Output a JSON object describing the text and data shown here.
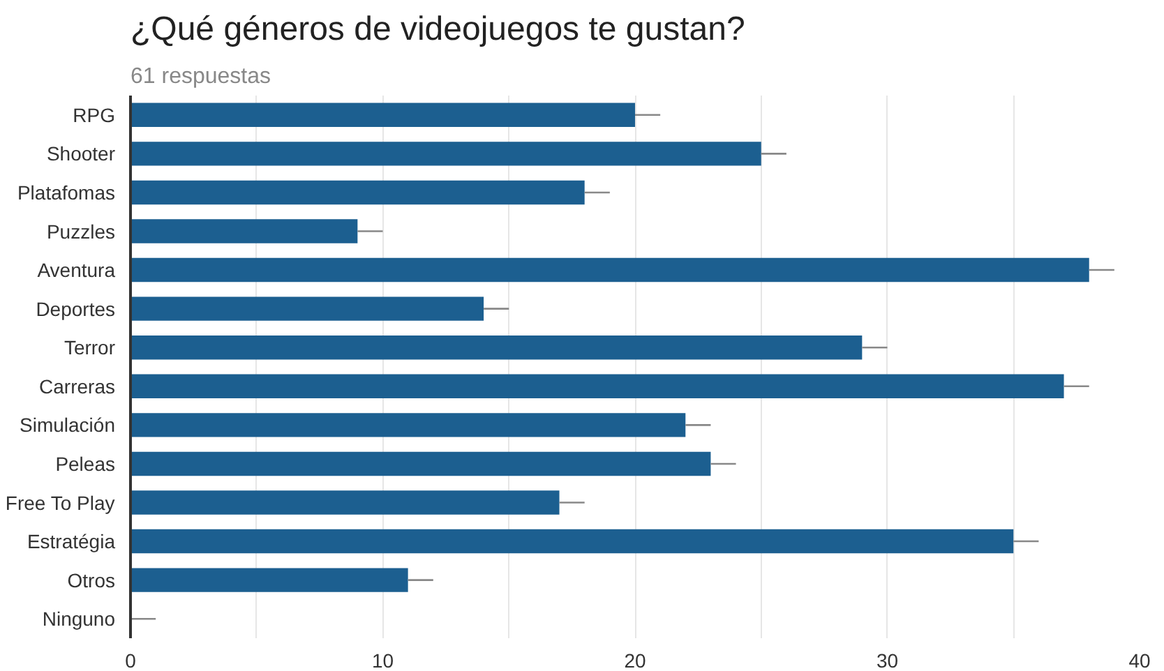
{
  "chart_data": {
    "type": "bar",
    "orientation": "horizontal",
    "title": "¿Qué géneros de videojuegos te gustan?",
    "subtitle": "61 respuestas",
    "categories": [
      "RPG",
      "Shooter",
      "Platafomas",
      "Puzzles",
      "Aventura",
      "Deportes",
      "Terror",
      "Carreras",
      "Simulación",
      "Peleas",
      "Free To Play",
      "Estratégia",
      "Otros",
      "Ninguno"
    ],
    "values": [
      20,
      25,
      18,
      9,
      38,
      14,
      29,
      37,
      22,
      23,
      17,
      35,
      11,
      0
    ],
    "errors": [
      [
        20,
        21
      ],
      [
        25,
        26
      ],
      [
        18,
        19
      ],
      [
        9,
        10
      ],
      [
        38,
        39
      ],
      [
        14,
        15
      ],
      [
        29,
        30
      ],
      [
        37,
        38
      ],
      [
        22,
        23
      ],
      [
        23,
        24
      ],
      [
        17,
        18
      ],
      [
        35,
        36
      ],
      [
        11,
        12
      ],
      [
        0,
        1
      ]
    ],
    "color": "#1c5f90",
    "xlim": [
      0,
      40
    ],
    "xticks": [
      0,
      {
        "value": 5,
        "label": null
      },
      10,
      {
        "value": 15,
        "label": null
      },
      20,
      {
        "value": 25,
        "label": null
      },
      30,
      {
        "value": 35,
        "label": null
      },
      40
    ],
    "grid": "x"
  }
}
